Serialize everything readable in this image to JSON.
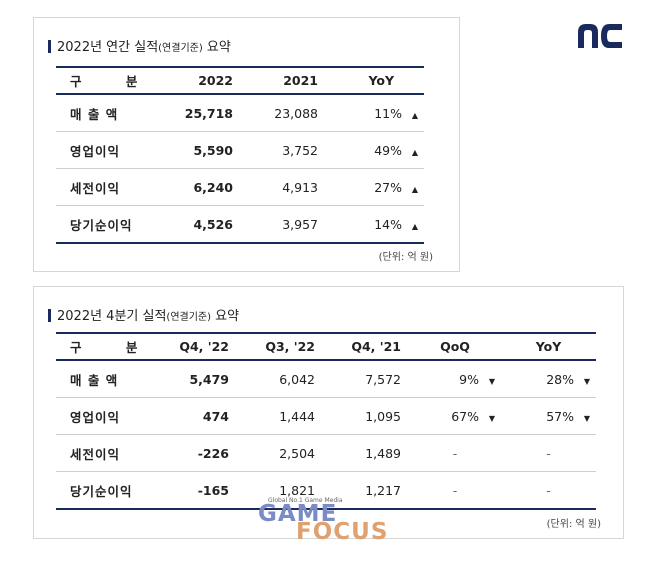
{
  "annual": {
    "title_main": "2022년 연간 실적",
    "title_paren": "(연결기준)",
    "title_tail": " 요약",
    "headers": [
      "구 분",
      "2022",
      "2021",
      "YoY"
    ],
    "rows": [
      {
        "label": "매 출 액",
        "v2022": "25,718",
        "v2021": "23,088",
        "yoy": "11%",
        "arrow": "▲"
      },
      {
        "label": "영업이익",
        "v2022": "5,590",
        "v2021": "3,752",
        "yoy": "49%",
        "arrow": "▲"
      },
      {
        "label": "세전이익",
        "v2022": "6,240",
        "v2021": "4,913",
        "yoy": "27%",
        "arrow": "▲"
      },
      {
        "label": "당기순이익",
        "v2022": "4,526",
        "v2021": "3,957",
        "yoy": "14%",
        "arrow": "▲"
      }
    ],
    "unit": "(단위: 억 원)"
  },
  "quarterly": {
    "title_main": "2022년 4분기 실적",
    "title_paren": "(연결기준)",
    "title_tail": " 요약",
    "headers": [
      "구 분",
      "Q4, '22",
      "Q3, '22",
      "Q4, '21",
      "QoQ",
      "YoY"
    ],
    "rows": [
      {
        "label": "매 출 액",
        "q4_22": "5,479",
        "q3_22": "6,042",
        "q4_21": "7,572",
        "qoq": "9%",
        "qoq_arrow": "▼",
        "yoy": "28%",
        "yoy_arrow": "▼"
      },
      {
        "label": "영업이익",
        "q4_22": "474",
        "q3_22": "1,444",
        "q4_21": "1,095",
        "qoq": "67%",
        "qoq_arrow": "▼",
        "yoy": "57%",
        "yoy_arrow": "▼"
      },
      {
        "label": "세전이익",
        "q4_22": "-226",
        "q3_22": "2,504",
        "q4_21": "1,489",
        "qoq": "-",
        "qoq_arrow": "",
        "yoy": "-",
        "yoy_arrow": ""
      },
      {
        "label": "당기순이익",
        "q4_22": "-165",
        "q3_22": "1,821",
        "q4_21": "1,217",
        "qoq": "-",
        "qoq_arrow": "",
        "yoy": "-",
        "yoy_arrow": ""
      }
    ],
    "unit": "(단위: 억 원)"
  },
  "logo": {
    "text": "nc",
    "color": "#1b2a5e"
  },
  "watermark": {
    "tagline": "Global No.1 Game Media",
    "word1": "GAME",
    "word2": "FOCUS"
  },
  "colors": {
    "accent": "#1b2a5e"
  }
}
